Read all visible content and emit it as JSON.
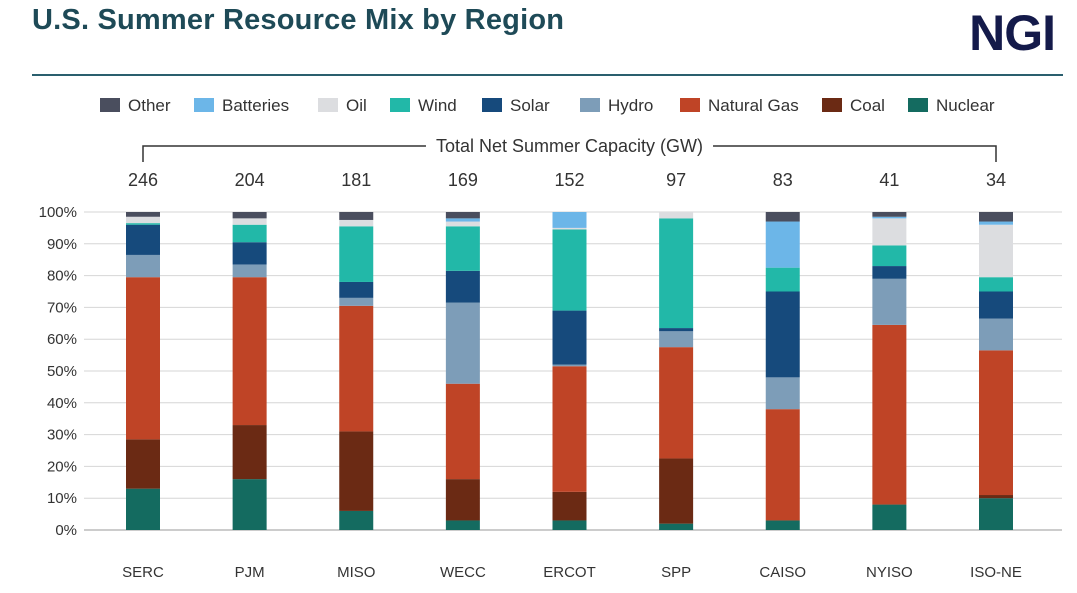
{
  "header": {
    "title": "U.S. Summer Resource Mix by Region",
    "logo_text": "NGI"
  },
  "colors": {
    "Other": "#4a4e5e",
    "Batteries": "#6cb6e8",
    "Oil": "#dcdde0",
    "Wind": "#22b8a8",
    "Solar": "#164a7c",
    "Hydro": "#7d9db8",
    "Natural Gas": "#bf4426",
    "Coal": "#6b2a14",
    "Nuclear": "#146b60"
  },
  "chart_data": {
    "type": "bar",
    "stacked": true,
    "title": "U.S. Summer Resource Mix by Region",
    "capacity_label": "Total Net Summer Capacity (GW)",
    "categories": [
      "SERC",
      "PJM",
      "MISO",
      "WECC",
      "ERCOT",
      "SPP",
      "CAISO",
      "NYISO",
      "ISO-NE"
    ],
    "capacity_gw": [
      246,
      204,
      181,
      169,
      152,
      97,
      83,
      41,
      34
    ],
    "legend": [
      "Other",
      "Batteries",
      "Oil",
      "Wind",
      "Solar",
      "Hydro",
      "Natural Gas",
      "Coal",
      "Nuclear"
    ],
    "legend_position": "top",
    "ylim": [
      0,
      100
    ],
    "yticks": [
      "0%",
      "10%",
      "20%",
      "30%",
      "40%",
      "50%",
      "60%",
      "70%",
      "80%",
      "90%",
      "100%"
    ],
    "grid": true,
    "series": [
      {
        "name": "Nuclear",
        "values": [
          13,
          16,
          6,
          3,
          3,
          2,
          3,
          8,
          10
        ]
      },
      {
        "name": "Coal",
        "values": [
          15.5,
          17,
          25,
          13,
          9,
          20.5,
          0,
          0,
          1
        ]
      },
      {
        "name": "Natural Gas",
        "values": [
          51,
          46.5,
          39.5,
          30,
          39.5,
          35,
          35,
          56.5,
          45.5
        ]
      },
      {
        "name": "Hydro",
        "values": [
          7,
          4,
          2.5,
          25.5,
          0.5,
          5,
          10,
          14.5,
          10
        ]
      },
      {
        "name": "Solar",
        "values": [
          9.5,
          7,
          5,
          10,
          17,
          1,
          27,
          4,
          8.5
        ]
      },
      {
        "name": "Wind",
        "values": [
          0.5,
          5.5,
          17.5,
          14,
          25.5,
          34.5,
          7.5,
          6.5,
          4.5
        ]
      },
      {
        "name": "Oil",
        "values": [
          2,
          2,
          2,
          1.5,
          0.5,
          2,
          0,
          8.5,
          16.5
        ]
      },
      {
        "name": "Batteries",
        "values": [
          0,
          0,
          0,
          1,
          5,
          0,
          14.5,
          0.5,
          1
        ]
      },
      {
        "name": "Other",
        "values": [
          1.5,
          2,
          2.5,
          2,
          0,
          0,
          3,
          1.5,
          3
        ]
      }
    ]
  }
}
